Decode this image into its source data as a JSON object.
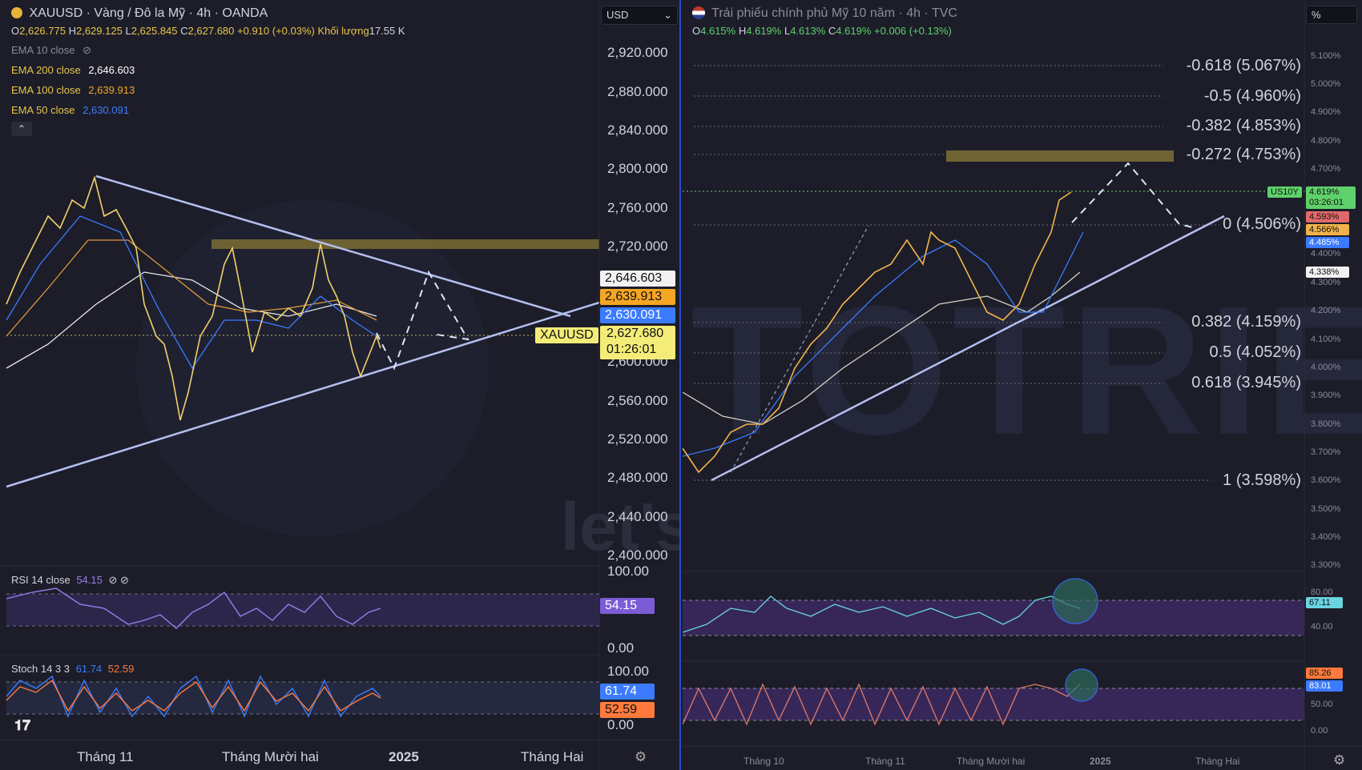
{
  "left": {
    "symbol_title": "XAUUSD · Vàng / Đô la Mỹ · 4h · OANDA",
    "ohlc": {
      "o_label": "O",
      "o": "2,626.775",
      "h_label": "H",
      "h": "2,629.125",
      "l_label": "L",
      "l": "2,625.845",
      "c_label": "C",
      "c": "2,627.680",
      "change": "+0.910 (+0.03%)",
      "volume_label": "Khối lượng",
      "volume": "17.55 K"
    },
    "indicators": [
      {
        "label": "EMA 10 close",
        "value": ""
      },
      {
        "label": "EMA 200 close",
        "value": "2,646.603"
      },
      {
        "label": "EMA 100 close",
        "value": "2,639.913"
      },
      {
        "label": "EMA 50 close",
        "value": "2,630.091"
      }
    ],
    "currency_select": "USD",
    "price_axis": [
      "2,920.000",
      "2,880.000",
      "2,840.000",
      "2,800.000",
      "2,760.000",
      "2,720.000",
      "2,600.000",
      "2,560.000",
      "2,520.000",
      "2,480.000",
      "2,440.000",
      "2,400.000"
    ],
    "price_tags": {
      "ema200": "2,646.603",
      "ema100": "2,639.913",
      "ema50": "2,630.091",
      "last": "2,627.680",
      "countdown": "01:26:01",
      "symbol": "XAUUSD"
    },
    "rsi": {
      "label": "RSI 14 close",
      "value": "54.15",
      "axis_top": "100.00",
      "axis_bottom": "0.00"
    },
    "stoch": {
      "label": "Stoch 14 3 3",
      "k": "61.74",
      "d": "52.59",
      "axis_top": "100.00",
      "axis_bottom": "0.00"
    },
    "time_axis": [
      "Tháng 11",
      "Tháng Mười hai",
      "2025",
      "Tháng Hai"
    ]
  },
  "right": {
    "symbol_title": "Trái phiếu chính phủ Mỹ 10 năm · 4h · TVC",
    "ohlc": {
      "o_label": "O",
      "o": "4.615%",
      "h_label": "H",
      "h": "4.619%",
      "l_label": "L",
      "l": "4.613%",
      "c_label": "C",
      "c": "4.619%",
      "change": "+0.006 (+0.13%)"
    },
    "unit_select": "%",
    "price_axis": [
      "5.100%",
      "5.000%",
      "4.900%",
      "4.800%",
      "4.700%",
      "4.400%",
      "4.300%",
      "4.200%",
      "4.100%",
      "4.000%",
      "3.900%",
      "3.800%",
      "3.700%",
      "3.600%",
      "3.500%",
      "3.400%",
      "3.300%"
    ],
    "fib_levels": [
      "-0.618 (5.067%)",
      "-0.5 (4.960%)",
      "-0.382 (4.853%)",
      "-0.272 (4.753%)",
      "0 (4.506%)",
      "0.382 (4.159%)",
      "0.5 (4.052%)",
      "0.618 (3.945%)",
      "1 (3.598%)"
    ],
    "price_tags": {
      "symbol": "US10Y",
      "last": "4.619%",
      "countdown": "03:26:01",
      "t1": "4.593%",
      "t2": "4.566%",
      "t3": "4.485%",
      "t4": "4.338%"
    },
    "rsi": {
      "axis_top": "80.00",
      "value": "67.11",
      "axis_mid": "40.00"
    },
    "stoch": {
      "k": "85.26",
      "d": "83.01",
      "axis_mid": "50.00",
      "axis_bottom": "0.00"
    },
    "time_axis": [
      "Tháng 10",
      "Tháng 11",
      "Tháng Mười hai",
      "2025",
      "Tháng Hai"
    ]
  },
  "watermark": {
    "brand": "TOTRIEU",
    "slogan": "let's learn together"
  },
  "colors": {
    "ema200": "#f0f0f0",
    "ema100": "#f5a623",
    "ema50": "#3b7bff",
    "fib_zone": "#8a7a3a",
    "trendline": "#aab6e8",
    "rsi": "#9b7cf0",
    "stoch_k": "#3b7bff",
    "stoch_d": "#ff7a3c",
    "candle_up": "#f5e07a",
    "candle_down": "#e04a4a"
  }
}
